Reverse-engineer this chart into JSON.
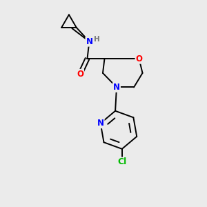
{
  "bg_color": "#ebebeb",
  "bond_color": "#000000",
  "atom_colors": {
    "O": "#ff0000",
    "N": "#0000ff",
    "Cl": "#00bb00",
    "H": "#777777",
    "C": "#000000"
  },
  "font_size": 8.5,
  "line_width": 1.4
}
